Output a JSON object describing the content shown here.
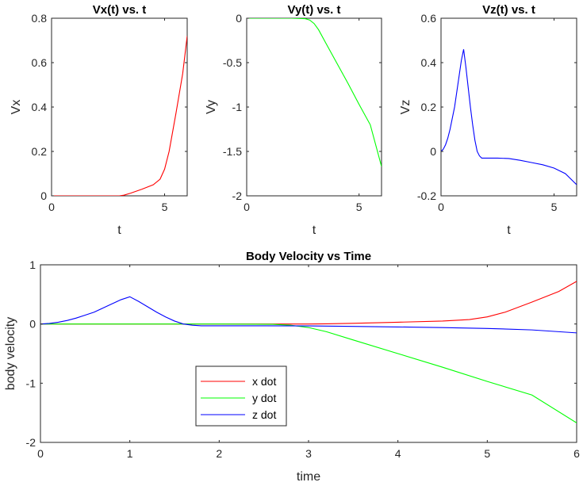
{
  "chart_data": [
    {
      "type": "line",
      "title": "Vx(t) vs. t",
      "xlabel": "t",
      "ylabel": "Vx",
      "xlim": [
        0,
        6
      ],
      "ylim": [
        0,
        0.8
      ],
      "xticks": [
        {
          "v": 0,
          "label": "0"
        },
        {
          "v": 5,
          "label": "5"
        }
      ],
      "yticks": [
        {
          "v": 0,
          "label": "0"
        },
        {
          "v": 0.2,
          "label": "0.2"
        },
        {
          "v": 0.4,
          "label": "0.4"
        },
        {
          "v": 0.6,
          "label": "0.6"
        },
        {
          "v": 0.8,
          "label": "0.8"
        }
      ],
      "grid": false,
      "series": [
        {
          "color": "#ff0000",
          "x": [
            0,
            1,
            2,
            3,
            3.2,
            3.5,
            4,
            4.5,
            4.8,
            5,
            5.2,
            5.5,
            5.8,
            6
          ],
          "y": [
            0,
            0,
            0,
            0,
            0.003,
            0.012,
            0.03,
            0.05,
            0.075,
            0.12,
            0.2,
            0.37,
            0.55,
            0.72
          ]
        }
      ]
    },
    {
      "type": "line",
      "title": "Vy(t) vs. t",
      "xlabel": "t",
      "ylabel": "Vy",
      "xlim": [
        0,
        6
      ],
      "ylim": [
        -2,
        0
      ],
      "xticks": [
        {
          "v": 0,
          "label": "0"
        },
        {
          "v": 5,
          "label": "5"
        }
      ],
      "yticks": [
        {
          "v": 0,
          "label": "0"
        },
        {
          "v": -0.5,
          "label": "-0.5"
        },
        {
          "v": -1,
          "label": "-1"
        },
        {
          "v": -1.5,
          "label": "-1.5"
        },
        {
          "v": -2,
          "label": "-2"
        }
      ],
      "grid": false,
      "series": [
        {
          "color": "#00ff00",
          "x": [
            0,
            1,
            2,
            2.6,
            2.8,
            3,
            3.2,
            3.5,
            4,
            4.5,
            5,
            5.5,
            6
          ],
          "y": [
            0,
            0,
            0,
            -0.005,
            -0.02,
            -0.06,
            -0.13,
            -0.27,
            -0.5,
            -0.73,
            -0.97,
            -1.2,
            -1.67
          ]
        }
      ]
    },
    {
      "type": "line",
      "title": "Vz(t) vs. t",
      "xlabel": "t",
      "ylabel": "Vz",
      "xlim": [
        0,
        6
      ],
      "ylim": [
        -0.2,
        0.6
      ],
      "xticks": [
        {
          "v": 0,
          "label": "0"
        },
        {
          "v": 5,
          "label": "5"
        }
      ],
      "yticks": [
        {
          "v": 0.6,
          "label": "0.6"
        },
        {
          "v": 0.4,
          "label": "0.4"
        },
        {
          "v": 0.2,
          "label": "0.2"
        },
        {
          "v": 0,
          "label": "0"
        },
        {
          "v": -0.2,
          "label": "-0.2"
        }
      ],
      "grid": false,
      "series": [
        {
          "color": "#0000ff",
          "x": [
            0,
            0.1,
            0.2,
            0.3,
            0.4,
            0.5,
            0.6,
            0.7,
            0.8,
            0.9,
            1.0,
            1.1,
            1.2,
            1.3,
            1.4,
            1.5,
            1.6,
            1.7,
            1.8,
            1.9,
            2,
            2.5,
            3,
            3.5,
            4,
            4.5,
            5,
            5.5,
            6
          ],
          "y": [
            0,
            0.01,
            0.03,
            0.06,
            0.1,
            0.15,
            0.2,
            0.27,
            0.34,
            0.41,
            0.46,
            0.38,
            0.29,
            0.2,
            0.12,
            0.05,
            0.0,
            -0.02,
            -0.03,
            -0.03,
            -0.03,
            -0.03,
            -0.032,
            -0.04,
            -0.05,
            -0.06,
            -0.075,
            -0.1,
            -0.15
          ]
        }
      ]
    },
    {
      "type": "line",
      "title": "Body Velocity vs Time",
      "xlabel": "time",
      "ylabel": "body velocity",
      "xlim": [
        0,
        6
      ],
      "ylim": [
        -2,
        1
      ],
      "xticks": [
        {
          "v": 0,
          "label": "0"
        },
        {
          "v": 1,
          "label": "1"
        },
        {
          "v": 2,
          "label": "2"
        },
        {
          "v": 3,
          "label": "3"
        },
        {
          "v": 4,
          "label": "4"
        },
        {
          "v": 5,
          "label": "5"
        },
        {
          "v": 6,
          "label": "6"
        }
      ],
      "yticks": [
        {
          "v": 1,
          "label": "1"
        },
        {
          "v": 0,
          "label": "0"
        },
        {
          "v": -1,
          "label": "-1"
        },
        {
          "v": -2,
          "label": "-2"
        }
      ],
      "grid": false,
      "legend_position": "lower-left",
      "series": [
        {
          "name": "x dot",
          "color": "#ff0000",
          "x": [
            0,
            1,
            2,
            3,
            3.2,
            3.5,
            4,
            4.5,
            4.8,
            5,
            5.2,
            5.5,
            5.8,
            6
          ],
          "y": [
            0,
            0,
            0,
            0,
            0.003,
            0.012,
            0.03,
            0.05,
            0.075,
            0.12,
            0.2,
            0.37,
            0.55,
            0.72
          ]
        },
        {
          "name": "y dot",
          "color": "#00ff00",
          "x": [
            0,
            1,
            2,
            2.6,
            2.8,
            3,
            3.2,
            3.5,
            4,
            4.5,
            5,
            5.5,
            6
          ],
          "y": [
            0,
            0,
            0,
            -0.005,
            -0.02,
            -0.06,
            -0.13,
            -0.27,
            -0.5,
            -0.73,
            -0.97,
            -1.2,
            -1.67
          ]
        },
        {
          "name": "z dot",
          "color": "#0000ff",
          "x": [
            0,
            0.1,
            0.2,
            0.3,
            0.4,
            0.5,
            0.6,
            0.7,
            0.8,
            0.9,
            1.0,
            1.1,
            1.2,
            1.3,
            1.4,
            1.5,
            1.6,
            1.7,
            1.8,
            1.9,
            2,
            2.5,
            3,
            3.5,
            4,
            4.5,
            5,
            5.5,
            6
          ],
          "y": [
            0,
            0.01,
            0.03,
            0.06,
            0.1,
            0.15,
            0.2,
            0.27,
            0.34,
            0.41,
            0.46,
            0.38,
            0.29,
            0.2,
            0.12,
            0.05,
            0.0,
            -0.02,
            -0.03,
            -0.03,
            -0.03,
            -0.03,
            -0.032,
            -0.04,
            -0.05,
            -0.06,
            -0.075,
            -0.1,
            -0.15
          ]
        }
      ]
    }
  ]
}
